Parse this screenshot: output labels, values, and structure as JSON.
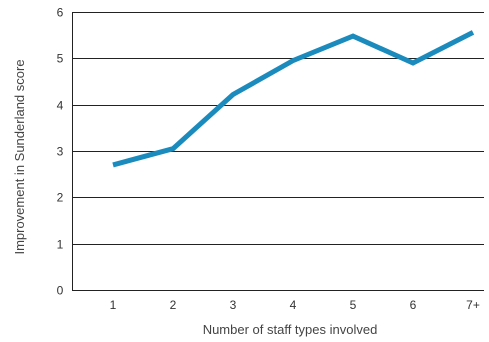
{
  "chart_data": {
    "type": "line",
    "categories": [
      "1",
      "2",
      "3",
      "4",
      "5",
      "6",
      "7+"
    ],
    "series": [
      {
        "values": [
          2.7,
          3.05,
          4.22,
          4.95,
          5.48,
          4.9,
          5.56
        ]
      }
    ],
    "xlabel": "Number of staff types involved",
    "ylabel": "Improvement in Sunderland score",
    "ylim": [
      0,
      6
    ],
    "yticks": [
      "0",
      "1",
      "2",
      "3",
      "4",
      "5",
      "6"
    ],
    "grid": "horizontal",
    "line_color": "#1b8bbd"
  }
}
